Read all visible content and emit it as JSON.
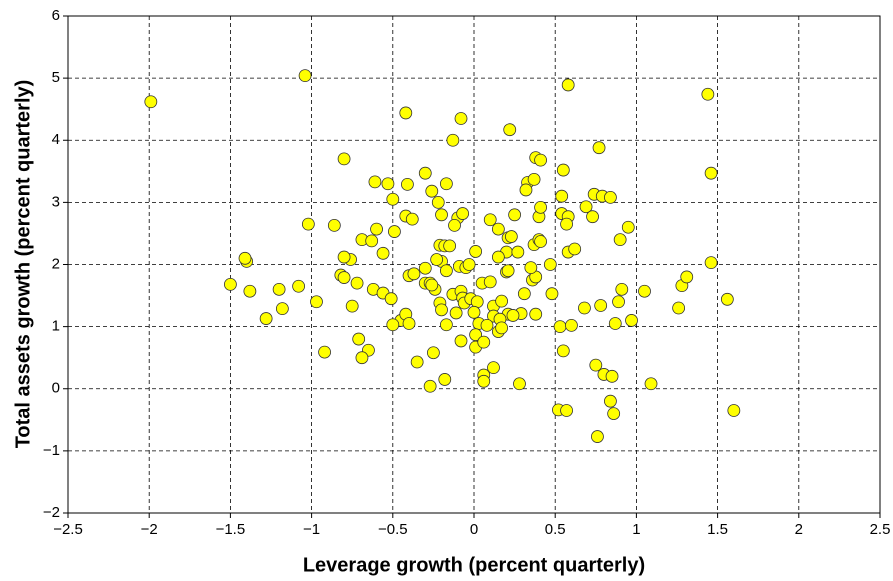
{
  "chart_data": {
    "type": "scatter",
    "x_label": "Leverage growth (percent quarterly)",
    "y_label": "Total assets growth (percent quarterly)",
    "color": "#ffff00",
    "grid": true,
    "xlim": [
      -2.5,
      2.5
    ],
    "ylim": [
      -2,
      6
    ],
    "xticks": [
      {
        "value": -2.5,
        "label": "−2.5"
      },
      {
        "value": -2,
        "label": "−2"
      },
      {
        "value": -1.5,
        "label": "−1.5"
      },
      {
        "value": -1,
        "label": "−1"
      },
      {
        "value": -0.5,
        "label": "−0.5"
      },
      0,
      0.5,
      1,
      1.5,
      2,
      2.5
    ],
    "yticks": [
      {
        "value": -2,
        "label": "−2"
      },
      {
        "value": -1,
        "label": "−1"
      },
      0,
      1,
      2,
      3,
      4,
      5,
      6
    ],
    "x": [
      -1.99,
      -1.04,
      -0.42,
      -0.08,
      0.58,
      1.44,
      0.22,
      -0.13,
      -0.8,
      0.77,
      1.46,
      0.38,
      0.41,
      0.55,
      -0.61,
      -0.53,
      -0.41,
      -0.3,
      -0.17,
      -0.26,
      0.33,
      0.32,
      0.37,
      0.54,
      0.74,
      0.79,
      0.84,
      0.69,
      -0.5,
      -0.22,
      -1.02,
      -0.86,
      -0.6,
      -0.42,
      -0.38,
      -0.49,
      -0.2,
      -0.1,
      -0.07,
      0.1,
      0.15,
      0.25,
      0.4,
      0.41,
      0.54,
      0.58,
      0.73,
      0.57,
      0.95,
      -0.12,
      -0.69,
      -0.63,
      -0.56,
      -0.76,
      -0.8,
      -0.21,
      -0.18,
      -0.15,
      -0.2,
      -0.23,
      -0.17,
      -0.09,
      -0.05,
      -0.03,
      0.01,
      0.21,
      0.23,
      0.2,
      0.27,
      0.37,
      0.4,
      0.41,
      0.58,
      0.62,
      0.9,
      -1.4,
      -1.41,
      -1.5,
      -1.38,
      -1.2,
      -1.08,
      -0.97,
      -1.18,
      -1.28,
      -0.82,
      -0.8,
      -0.72,
      -0.62,
      -0.56,
      -0.51,
      -0.4,
      -0.37,
      -0.3,
      -0.3,
      -0.27,
      -0.24,
      -0.26,
      -0.21,
      -0.2,
      -0.13,
      -0.08,
      -0.07,
      -0.06,
      -0.02,
      0.02,
      0.05,
      0.1,
      0.12,
      0.17,
      0.2,
      0.21,
      0.15,
      0.36,
      0.38,
      0.35,
      0.31,
      0.29,
      0.21,
      0.24,
      0.12,
      0.0,
      0.03,
      0.08,
      0.16,
      0.48,
      0.47,
      0.38,
      -0.45,
      -0.42,
      -0.4,
      -0.5,
      -0.75,
      -0.17,
      -0.11,
      0.15,
      0.17,
      -0.08,
      0.01,
      0.01,
      0.06,
      0.53,
      0.6,
      0.68,
      0.78,
      0.89,
      0.91,
      1.05,
      0.97,
      0.87,
      1.26,
      1.28,
      1.31,
      1.46,
      1.56,
      -0.92,
      -0.71,
      -0.65,
      -0.69,
      -0.35,
      -0.25,
      -0.18,
      -0.27,
      0.06,
      0.06,
      0.12,
      0.28,
      0.55,
      0.75,
      0.8,
      0.85,
      1.09,
      0.52,
      0.57,
      0.84,
      0.86,
      0.76,
      1.6
    ],
    "values": [
      4.62,
      5.04,
      4.44,
      4.35,
      4.89,
      4.74,
      4.17,
      4.0,
      3.7,
      3.88,
      3.47,
      3.72,
      3.68,
      3.52,
      3.33,
      3.3,
      3.29,
      3.47,
      3.3,
      3.18,
      3.32,
      3.2,
      3.37,
      3.1,
      3.13,
      3.1,
      3.08,
      2.93,
      3.05,
      3.0,
      2.65,
      2.63,
      2.57,
      2.78,
      2.73,
      2.53,
      2.8,
      2.75,
      2.82,
      2.72,
      2.57,
      2.8,
      2.77,
      2.92,
      2.82,
      2.77,
      2.77,
      2.65,
      2.6,
      2.63,
      2.4,
      2.38,
      2.18,
      2.08,
      2.12,
      2.31,
      2.3,
      2.3,
      2.05,
      2.08,
      1.9,
      1.97,
      1.95,
      2.0,
      2.21,
      2.43,
      2.45,
      2.2,
      2.2,
      2.32,
      2.4,
      2.37,
      2.2,
      2.25,
      2.4,
      2.05,
      2.1,
      1.68,
      1.57,
      1.6,
      1.65,
      1.4,
      1.29,
      1.13,
      1.83,
      1.79,
      1.7,
      1.6,
      1.54,
      1.45,
      1.82,
      1.85,
      1.94,
      1.7,
      1.7,
      1.6,
      1.67,
      1.38,
      1.27,
      1.52,
      1.57,
      1.46,
      1.38,
      1.45,
      1.4,
      1.7,
      1.72,
      1.33,
      1.41,
      1.88,
      1.9,
      2.12,
      1.75,
      1.8,
      1.95,
      1.53,
      1.21,
      1.2,
      1.18,
      1.17,
      1.23,
      1.05,
      1.02,
      1.12,
      1.53,
      2.0,
      1.2,
      1.1,
      1.2,
      1.05,
      1.03,
      1.33,
      1.03,
      1.22,
      0.92,
      0.98,
      0.77,
      0.87,
      0.67,
      0.75,
      1.0,
      1.02,
      1.3,
      1.34,
      1.4,
      1.6,
      1.57,
      1.1,
      1.05,
      1.3,
      1.66,
      1.8,
      2.03,
      1.44,
      0.59,
      0.8,
      0.62,
      0.5,
      0.43,
      0.58,
      0.15,
      0.04,
      0.22,
      0.12,
      0.34,
      0.08,
      0.61,
      0.38,
      0.23,
      0.2,
      0.08,
      -0.34,
      -0.35,
      -0.2,
      -0.4,
      -0.77,
      -0.35
    ]
  }
}
